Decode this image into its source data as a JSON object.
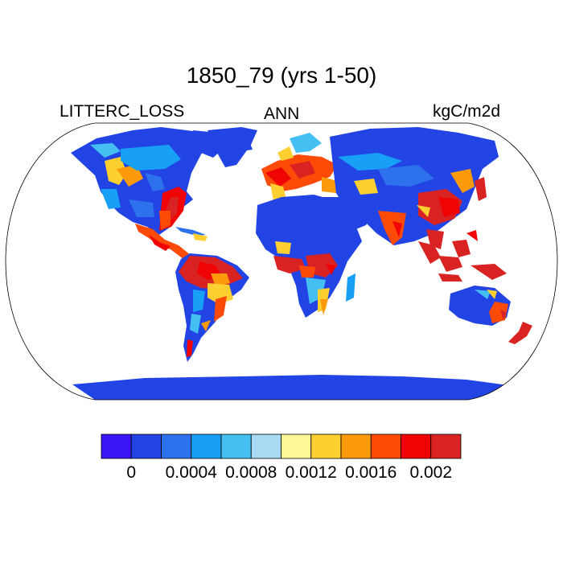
{
  "title": "1850_79 (yrs 1-50)",
  "left_label": "LITTERC_LOSS",
  "center_label": "ANN",
  "right_label": "kgC/m2d",
  "colorbar": {
    "colors": [
      "#3a14f5",
      "#2244e4",
      "#2d72ec",
      "#18a0f7",
      "#44bff2",
      "#a9daf3",
      "#fff797",
      "#fecf30",
      "#fd9a0c",
      "#fd4a07",
      "#ef0303",
      "#d92323"
    ],
    "tick_labels": [
      "0",
      "0.0004",
      "0.0008",
      "0.0012",
      "0.0016",
      "0.002"
    ],
    "tick_boundaries": [
      1,
      3,
      5,
      7,
      9,
      11
    ]
  },
  "map": {
    "projection": "Robinson",
    "ocean_color": "#ffffff",
    "land_base_color": "#2244e4"
  }
}
